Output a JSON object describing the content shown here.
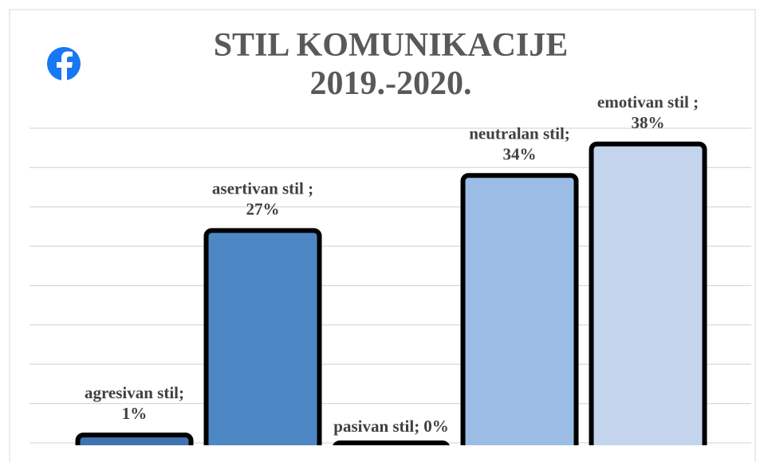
{
  "chart_data": {
    "type": "bar",
    "title": [
      "STIL KOMUNIKACIJE",
      "2019.-2020."
    ],
    "categories": [
      "agresivan stil;",
      "asertivan stil ;",
      "pasivan stil;",
      "neutralan stil;",
      "emotivan stil ;"
    ],
    "values": [
      1,
      27,
      0,
      34,
      38
    ],
    "value_labels": [
      "1%",
      "27%",
      "0%",
      "34%",
      "38%"
    ],
    "colors": [
      "#4273b0",
      "#4d88c4",
      "#3a6aa8",
      "#9bbce4",
      "#c3d4ec"
    ],
    "ylim": [
      0,
      40
    ],
    "yticks": [
      0,
      5,
      10,
      15,
      20,
      25,
      30,
      35,
      40
    ],
    "grid": true
  }
}
